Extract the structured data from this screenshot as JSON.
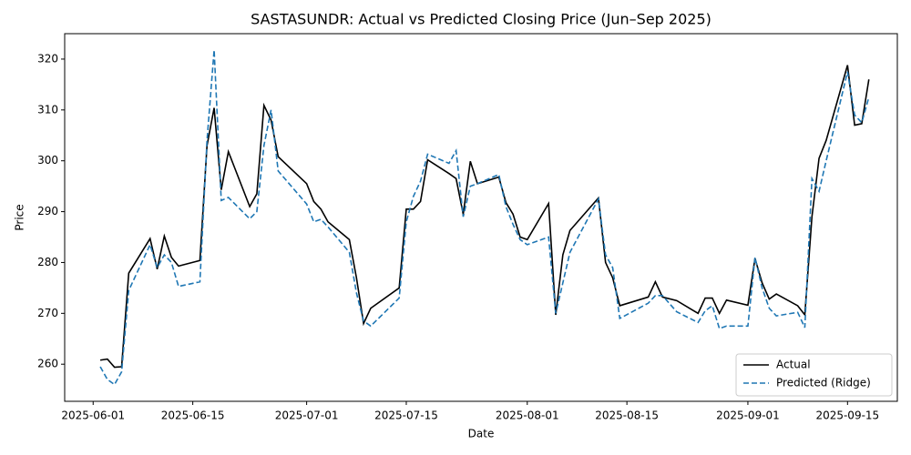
{
  "chart_data": {
    "type": "line",
    "title": "SASTASUNDR: Actual vs Predicted Closing Price (Jun–Sep 2025)",
    "x_label": "Date",
    "y_label": "Price",
    "x": [
      "2025-06-02",
      "2025-06-03",
      "2025-06-04",
      "2025-06-05",
      "2025-06-06",
      "2025-06-09",
      "2025-06-10",
      "2025-06-11",
      "2025-06-12",
      "2025-06-13",
      "2025-06-16",
      "2025-06-17",
      "2025-06-18",
      "2025-06-19",
      "2025-06-20",
      "2025-06-23",
      "2025-06-24",
      "2025-06-25",
      "2025-06-26",
      "2025-06-27",
      "2025-07-01",
      "2025-07-02",
      "2025-07-03",
      "2025-07-04",
      "2025-07-07",
      "2025-07-08",
      "2025-07-09",
      "2025-07-10",
      "2025-07-14",
      "2025-07-15",
      "2025-07-16",
      "2025-07-17",
      "2025-07-18",
      "2025-07-21",
      "2025-07-22",
      "2025-07-23",
      "2025-07-24",
      "2025-07-25",
      "2025-07-28",
      "2025-07-29",
      "2025-07-30",
      "2025-07-31",
      "2025-08-01",
      "2025-08-04",
      "2025-08-05",
      "2025-08-06",
      "2025-08-07",
      "2025-08-11",
      "2025-08-12",
      "2025-08-13",
      "2025-08-14",
      "2025-08-18",
      "2025-08-19",
      "2025-08-20",
      "2025-08-22",
      "2025-08-25",
      "2025-08-26",
      "2025-08-27",
      "2025-08-28",
      "2025-08-29",
      "2025-09-01",
      "2025-09-02",
      "2025-09-03",
      "2025-09-04",
      "2025-09-05",
      "2025-09-08",
      "2025-09-09",
      "2025-09-10",
      "2025-09-11",
      "2025-09-12",
      "2025-09-15",
      "2025-09-16",
      "2025-09-17",
      "2025-09-18"
    ],
    "series": [
      {
        "name": "Actual",
        "color": "#000000",
        "dash": false,
        "values": [
          260.8,
          261.0,
          259.4,
          259.5,
          277.9,
          284.7,
          278.7,
          285.2,
          281.0,
          279.3,
          280.4,
          303.0,
          310.4,
          294.3,
          301.8,
          291.0,
          293.5,
          310.9,
          308.0,
          300.8,
          295.5,
          292.0,
          290.5,
          288.0,
          284.5,
          277.0,
          268.0,
          271.0,
          275.0,
          290.5,
          290.5,
          292.0,
          300.2,
          297.5,
          296.5,
          289.5,
          299.9,
          295.5,
          296.8,
          291.8,
          289.5,
          285.0,
          284.5,
          291.6,
          269.7,
          281.5,
          286.3,
          292.7,
          280.0,
          277.0,
          271.5,
          273.2,
          276.2,
          273.2,
          272.5,
          270.0,
          273.0,
          273.0,
          270.0,
          272.6,
          271.6,
          280.8,
          276.0,
          272.8,
          273.8,
          271.5,
          269.7,
          289.0,
          300.5,
          304.0,
          318.8,
          307.0,
          307.3,
          316.0
        ]
      },
      {
        "name": "Predicted (Ridge)",
        "color": "#1f77b4",
        "dash": true,
        "values": [
          259.5,
          257.0,
          256.0,
          258.5,
          274.5,
          283.5,
          279.0,
          281.5,
          280.0,
          275.3,
          276.2,
          304.0,
          321.8,
          292.2,
          292.8,
          288.6,
          290.0,
          303.0,
          310.0,
          298.0,
          291.5,
          288.0,
          288.5,
          287.0,
          282.0,
          274.0,
          268.5,
          267.5,
          273.0,
          288.0,
          293.0,
          296.0,
          301.3,
          299.5,
          302.0,
          289.0,
          295.0,
          295.5,
          297.3,
          291.0,
          287.5,
          284.5,
          283.5,
          285.0,
          270.0,
          276.0,
          282.0,
          292.5,
          281.5,
          279.0,
          269.0,
          272.0,
          273.5,
          273.5,
          270.3,
          268.2,
          270.5,
          271.5,
          267.0,
          267.5,
          267.5,
          281.0,
          275.0,
          271.0,
          269.5,
          270.2,
          267.2,
          296.5,
          294.0,
          300.0,
          317.5,
          309.0,
          307.5,
          312.5
        ]
      }
    ],
    "xlim": [
      "2025-05-28",
      "2025-09-22"
    ],
    "xticks": [
      "2025-06-01",
      "2025-06-15",
      "2025-07-01",
      "2025-07-15",
      "2025-08-01",
      "2025-08-15",
      "2025-09-01",
      "2025-09-15"
    ],
    "ylim": [
      252.7,
      325.0
    ],
    "yticks": [
      260,
      270,
      280,
      290,
      300,
      310,
      320
    ],
    "grid": false,
    "legend": "lower right"
  }
}
